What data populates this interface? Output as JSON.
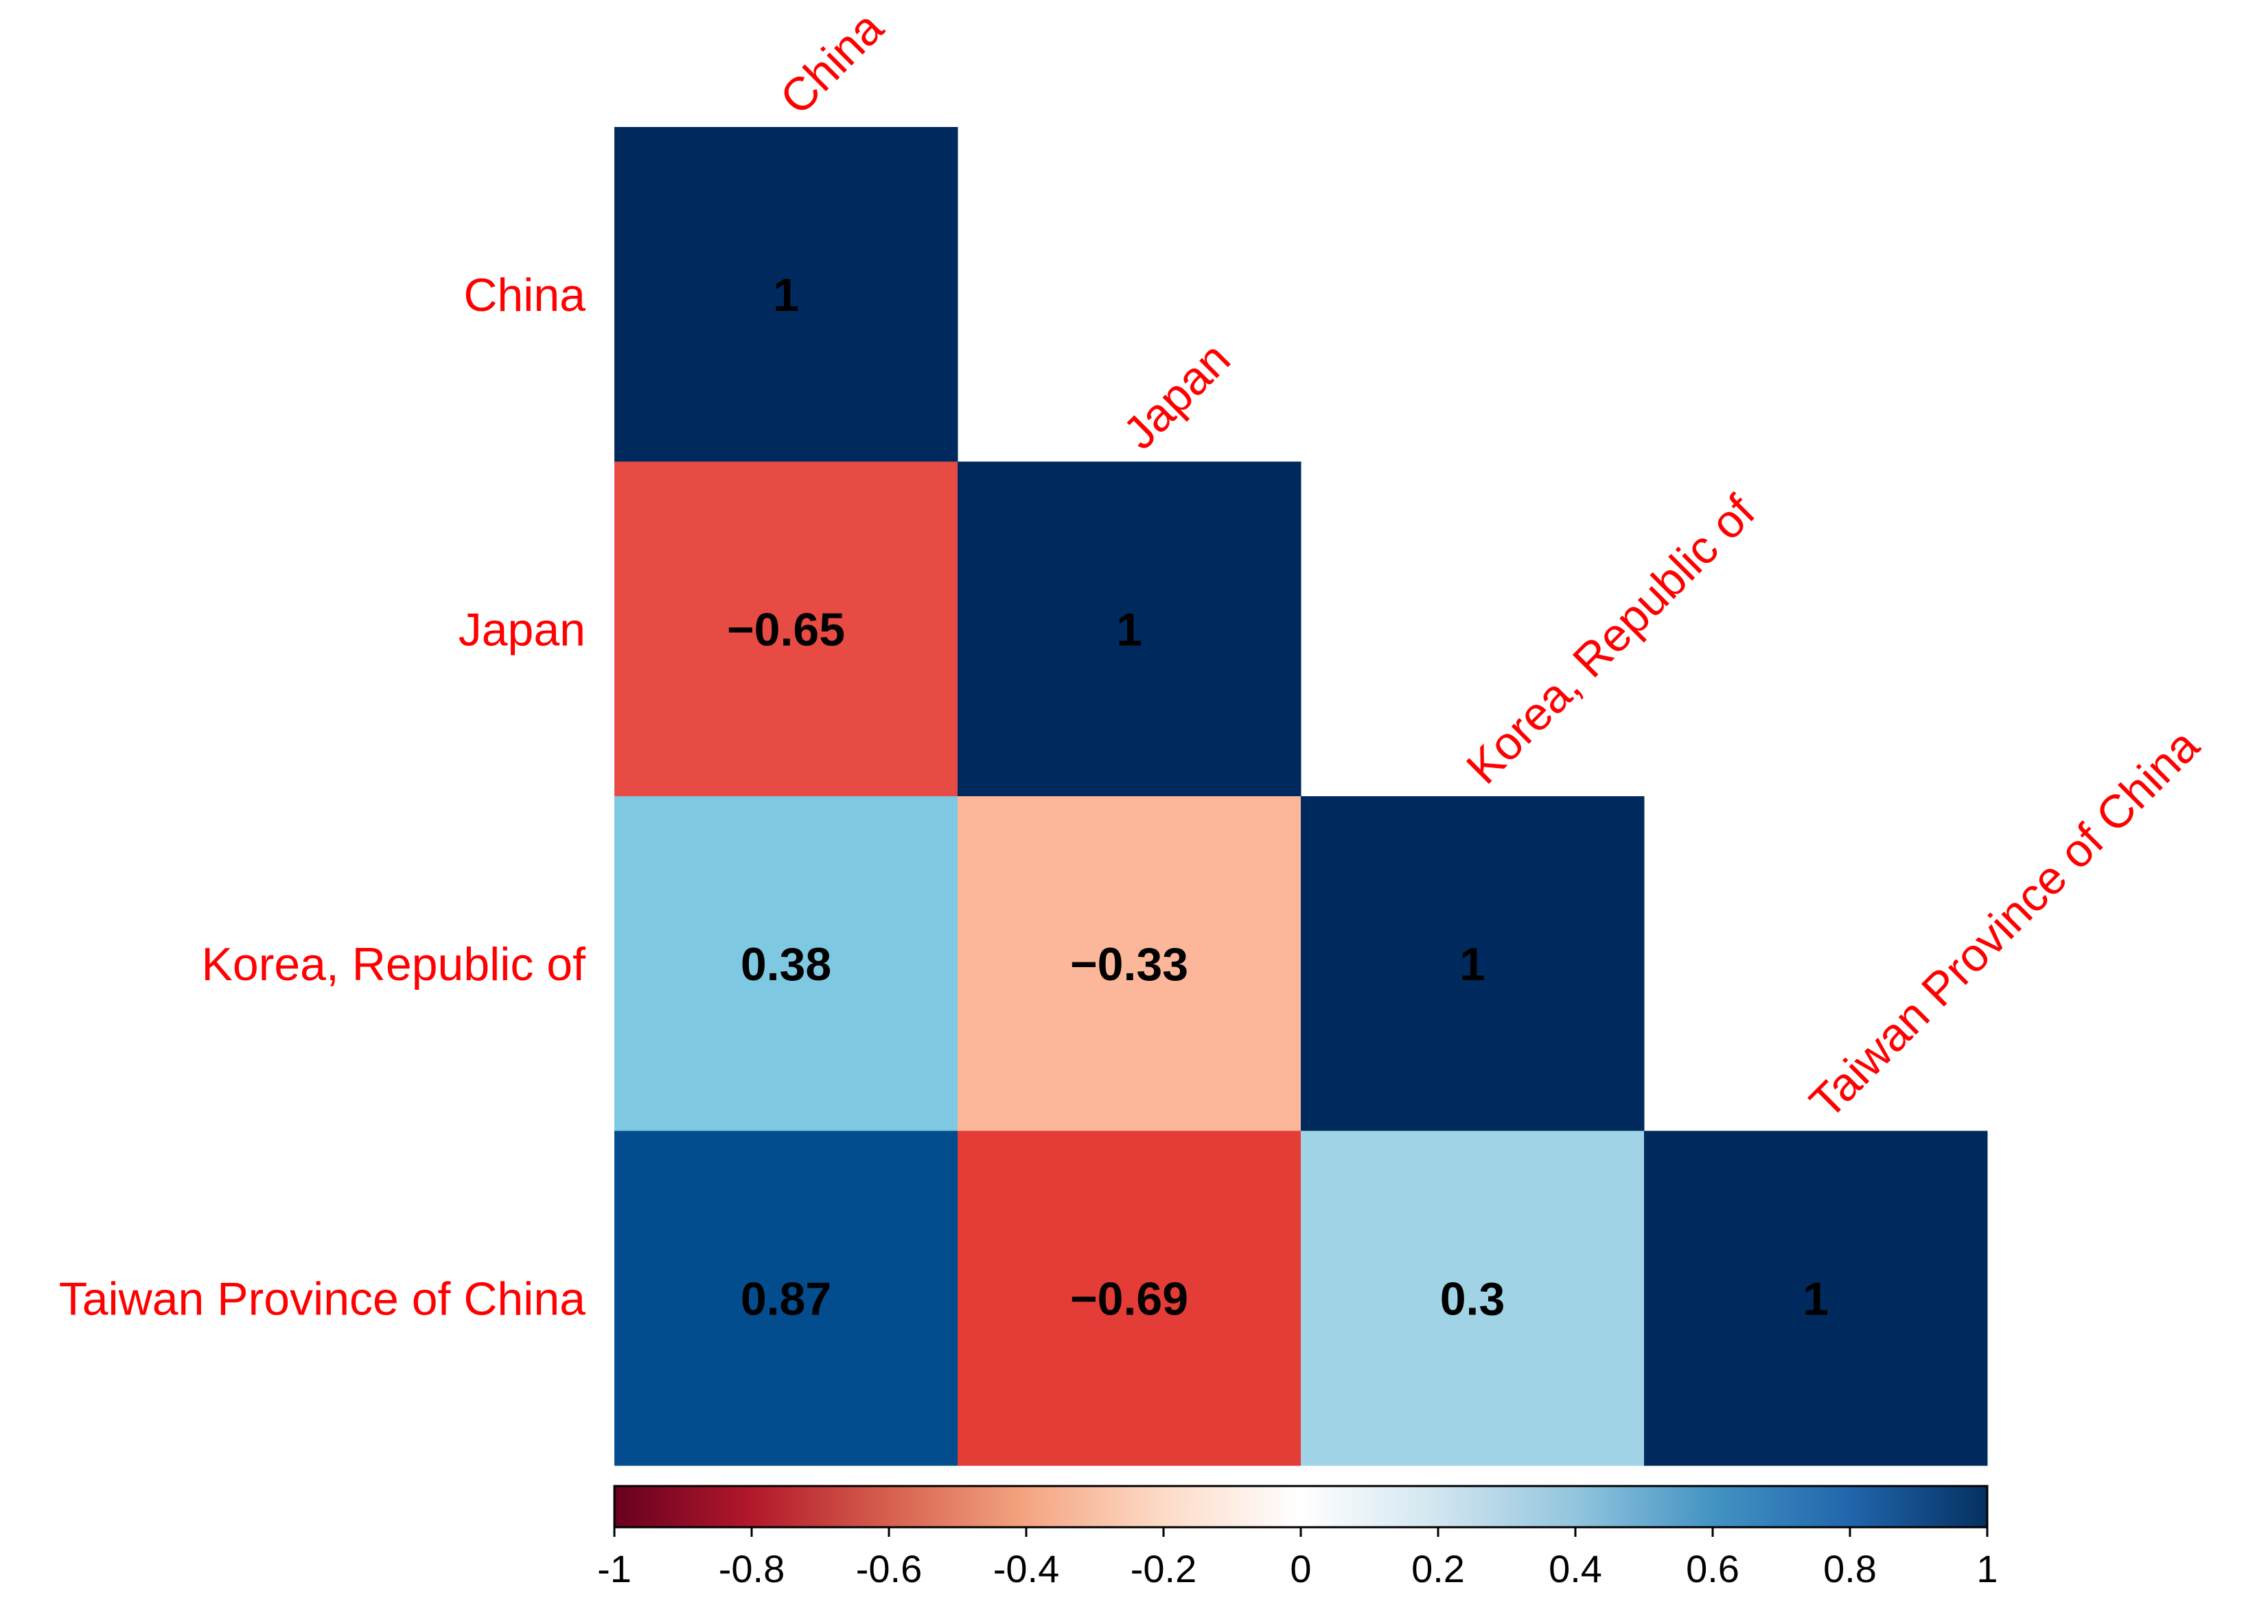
{
  "chart_data": {
    "type": "heatmap",
    "subtype": "correlation-lower-triangle",
    "variables": [
      "China",
      "Japan",
      "Korea, Republic of",
      "Taiwan Province of China"
    ],
    "cells": [
      {
        "row": 0,
        "col": 0,
        "value": 1,
        "label": "1"
      },
      {
        "row": 1,
        "col": 0,
        "value": -0.65,
        "label": "−0.65"
      },
      {
        "row": 1,
        "col": 1,
        "value": 1,
        "label": "1"
      },
      {
        "row": 2,
        "col": 0,
        "value": 0.38,
        "label": "0.38"
      },
      {
        "row": 2,
        "col": 1,
        "value": -0.33,
        "label": "−0.33"
      },
      {
        "row": 2,
        "col": 2,
        "value": 1,
        "label": "1"
      },
      {
        "row": 3,
        "col": 0,
        "value": 0.87,
        "label": "0.87"
      },
      {
        "row": 3,
        "col": 1,
        "value": -0.69,
        "label": "−0.69"
      },
      {
        "row": 3,
        "col": 2,
        "value": 0.3,
        "label": "0.3"
      },
      {
        "row": 3,
        "col": 3,
        "value": 1,
        "label": "1"
      }
    ],
    "colorbar": {
      "range": [
        -1,
        1
      ],
      "ticks": [
        -1,
        -0.8,
        -0.6,
        -0.4,
        -0.2,
        0,
        0.2,
        0.4,
        0.6,
        0.8,
        1
      ],
      "tick_labels": [
        "-1",
        "-0.8",
        "-0.6",
        "-0.4",
        "-0.2",
        "0",
        "0.2",
        "0.4",
        "0.6",
        "0.8",
        "1"
      ],
      "colors": [
        "#67001f",
        "#b2182b",
        "#d6604d",
        "#f4a582",
        "#fddbc7",
        "#ffffff",
        "#d1e5f0",
        "#92c5de",
        "#4393c3",
        "#2166ac",
        "#053061"
      ],
      "placement": "bottom"
    },
    "cell_colors": {
      "1": "#002a5e",
      "-0.65": "#e84b44",
      "0.38": "#7ec8e1",
      "-0.33": "#fcb79a",
      "0.87": "#034c8d",
      "-0.69": "#e43c37",
      "0.3": "#a0d3e6"
    },
    "label_color": "#ff0000",
    "value_text_color": "#000000",
    "xlabel": "",
    "ylabel": "",
    "title": ""
  }
}
